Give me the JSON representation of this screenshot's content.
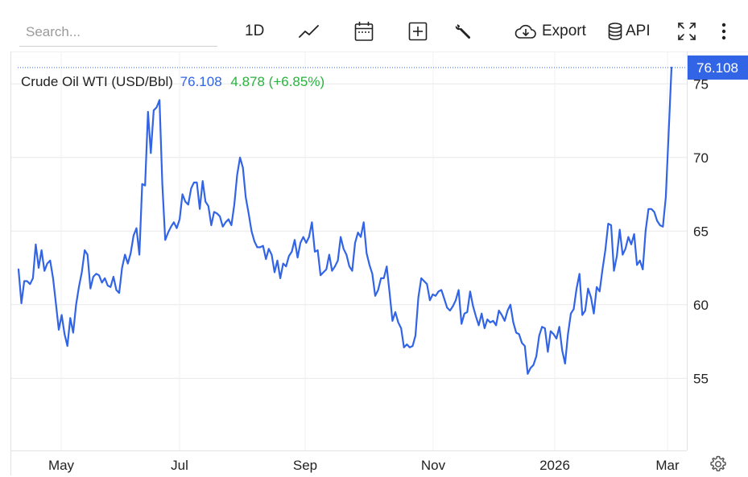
{
  "toolbar": {
    "search_placeholder": "Search...",
    "interval": "1D",
    "export_label": "Export",
    "api_label": "API",
    "icons": [
      "line-chart-icon",
      "calendar-icon",
      "add-indicator-icon",
      "wrench-icon",
      "cloud-download-icon",
      "database-icon",
      "fullscreen-icon",
      "more-vertical-icon",
      "gear-icon"
    ]
  },
  "legend": {
    "name": "Crude Oil WTI (USD/Bbl)",
    "price": "76.108",
    "change": "4.878 (+6.85%)"
  },
  "colors": {
    "line": "#3264e6",
    "price_text": "#3264e6",
    "change_text": "#27b33e",
    "last_price_badge": "#3264e6",
    "grid": "#e8e8e8"
  },
  "chart_data": {
    "type": "line",
    "title": "Crude Oil WTI (USD/Bbl)",
    "xlabel": "",
    "ylabel": "",
    "y_axis_side": "right",
    "ylim": [
      50.1,
      77.2
    ],
    "y_ticks": [
      55,
      60,
      65,
      70,
      75
    ],
    "x_ticks": [
      "May",
      "Jul",
      "Sep",
      "Nov",
      "2026",
      "Mar"
    ],
    "last_price_label": "76.108",
    "grid": true,
    "series": [
      {
        "values": [
          62.4,
          60.1,
          61.6,
          61.6,
          61.4,
          61.8,
          64.1,
          62.5,
          63.7,
          62.3,
          62.8,
          63.0,
          61.8,
          60.1,
          58.3,
          59.3,
          58.0,
          57.2,
          59.1,
          58.1,
          60.0,
          61.2,
          62.2,
          63.7,
          63.4,
          61.1,
          61.9,
          62.1,
          62.0,
          61.5,
          61.8,
          61.3,
          61.2,
          61.9,
          61.0,
          60.8,
          62.5,
          63.4,
          62.8,
          63.5,
          64.7,
          65.2,
          63.4,
          68.2,
          68.1,
          73.1,
          70.3,
          73.2,
          73.4,
          73.9,
          68.2,
          64.4,
          64.9,
          65.3,
          65.6,
          65.2,
          65.8,
          67.5,
          67.0,
          66.8,
          67.9,
          68.3,
          68.3,
          66.5,
          68.4,
          67.0,
          66.7,
          65.4,
          66.3,
          66.2,
          66.0,
          65.3,
          65.6,
          65.8,
          65.4,
          66.8,
          68.8,
          70.0,
          69.3,
          67.3,
          66.2,
          65.0,
          64.3,
          63.9,
          63.9,
          64.0,
          63.1,
          63.8,
          63.4,
          62.2,
          63.0,
          61.8,
          62.8,
          62.6,
          63.3,
          63.6,
          64.4,
          63.2,
          64.2,
          64.6,
          64.2,
          64.6,
          65.6,
          63.6,
          63.7,
          62.0,
          62.2,
          62.4,
          63.4,
          62.3,
          62.6,
          63.0,
          64.6,
          63.8,
          63.4,
          62.6,
          62.3,
          64.2,
          64.9,
          64.6,
          65.6,
          63.5,
          62.7,
          62.1,
          60.6,
          61.0,
          61.8,
          61.8,
          62.6,
          60.8,
          58.9,
          59.5,
          58.8,
          58.4,
          57.1,
          57.3,
          57.1,
          57.2,
          57.9,
          60.5,
          61.8,
          61.6,
          61.4,
          60.3,
          60.7,
          60.6,
          60.9,
          61.0,
          60.4,
          59.8,
          59.6,
          59.9,
          60.3,
          61.0,
          58.7,
          59.4,
          59.5,
          60.9,
          59.9,
          59.2,
          58.6,
          59.4,
          58.4,
          59.0,
          58.8,
          58.9,
          58.6,
          59.6,
          59.3,
          58.9,
          59.6,
          60.0,
          58.8,
          58.1,
          58.0,
          57.4,
          57.2,
          55.3,
          55.7,
          55.9,
          56.5,
          57.9,
          58.5,
          58.4,
          56.8,
          58.2,
          58.0,
          57.7,
          58.5,
          56.9,
          56.0,
          58.0,
          59.4,
          59.7,
          61.1,
          62.1,
          59.3,
          59.6,
          61.1,
          60.5,
          59.4,
          61.2,
          60.9,
          62.4,
          63.7,
          65.5,
          65.4,
          62.3,
          63.3,
          65.1,
          63.4,
          63.8,
          64.6,
          64.1,
          64.8,
          62.7,
          63.0,
          62.4,
          65.0,
          66.5,
          66.5,
          66.3,
          65.7,
          65.4,
          65.3,
          67.3,
          71.6,
          76.108
        ]
      }
    ]
  }
}
